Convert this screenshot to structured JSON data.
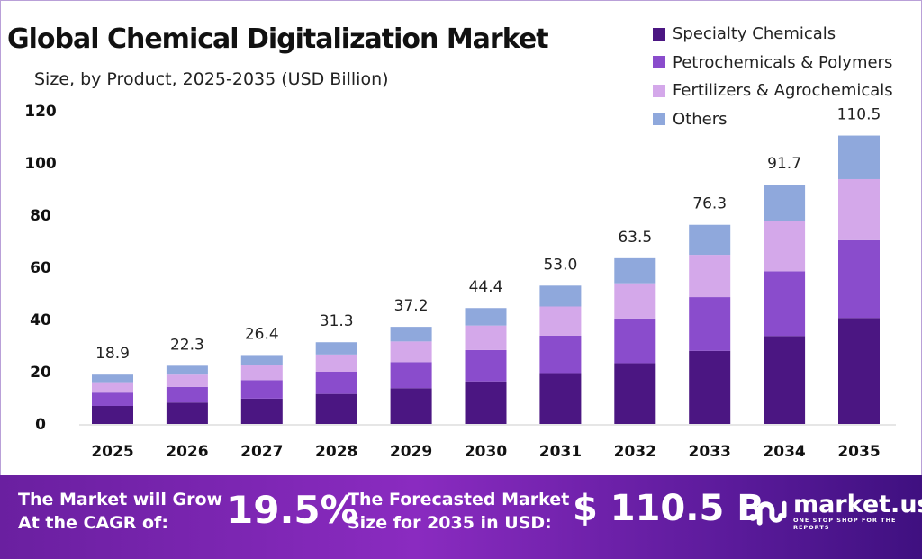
{
  "chart_data": {
    "type": "bar",
    "stacked": true,
    "title": "Global Chemical Digitalization Market",
    "subtitle": "Size, by Product, 2025-2035 (USD Billion)",
    "categories": [
      "2025",
      "2026",
      "2027",
      "2028",
      "2029",
      "2030",
      "2031",
      "2032",
      "2033",
      "2034",
      "2035"
    ],
    "totals": [
      "18.9",
      "22.3",
      "26.4",
      "31.3",
      "37.2",
      "44.4",
      "53.0",
      "63.5",
      "76.3",
      "91.7",
      "110.5"
    ],
    "series": [
      {
        "name": "Specialty Chemicals",
        "color": "#4b1682",
        "values": [
          6.9,
          8.2,
          9.7,
          11.5,
          13.7,
          16.3,
          19.5,
          23.3,
          28.0,
          33.7,
          40.6
        ]
      },
      {
        "name": "Petrochemicals & Polymers",
        "color": "#8a4ccc",
        "values": [
          5.1,
          6.0,
          7.1,
          8.5,
          10.0,
          12.0,
          14.3,
          17.1,
          20.6,
          24.8,
          29.8
        ]
      },
      {
        "name": "Fertilizers & Agrochemicals",
        "color": "#d4a8ea",
        "values": [
          4.0,
          4.7,
          5.6,
          6.6,
          7.9,
          9.4,
          11.2,
          13.5,
          16.2,
          19.4,
          23.4
        ]
      },
      {
        "name": "Others",
        "color": "#8fa8dc",
        "values": [
          2.9,
          3.4,
          4.0,
          4.7,
          5.6,
          6.7,
          8.0,
          9.6,
          11.5,
          13.8,
          16.7
        ]
      }
    ],
    "yticks": [
      "0",
      "20",
      "40",
      "60",
      "80",
      "100",
      "120"
    ],
    "ylim": [
      0,
      120
    ],
    "grid": false,
    "legend_position": "top-right"
  },
  "footer": {
    "cagr_label_1": "The Market will Grow",
    "cagr_label_2": "At the CAGR of:",
    "cagr_value": "19.5%",
    "forecast_label_1": "The Forecasted Market",
    "forecast_label_2": "Size for 2035 in USD:",
    "forecast_value": "$ 110.5 B",
    "logo_text": "market.us",
    "logo_tagline": "ONE STOP SHOP FOR THE REPORTS"
  }
}
